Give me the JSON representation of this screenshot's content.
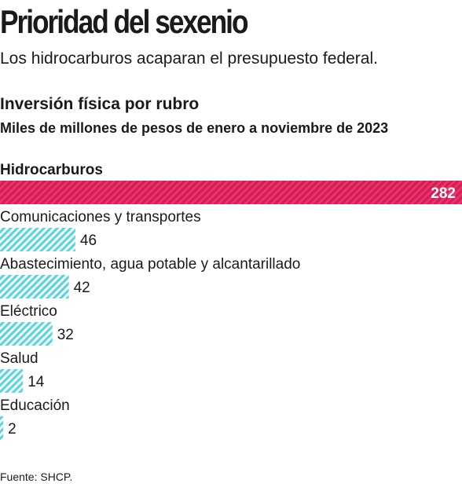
{
  "headline": "Prioridad del sexenio",
  "dek": "Los hidrocarburos acaparan el presupuesto federal.",
  "source": "Fuente: SHCP.",
  "colors": {
    "highlight": "#e0245e",
    "accent": "#5ad5df",
    "text": "#1a1a1a"
  },
  "chart_data": {
    "type": "bar",
    "orientation": "horizontal",
    "title": "Inversión física por rubro",
    "subtitle": "Miles de millones de pesos de enero a noviembre de 2023",
    "categories": [
      "Hidrocarburos",
      "Comunicaciones y transportes",
      "Abastecimiento, agua potable y alcantarillado",
      "Eléctrico",
      "Salud",
      "Educación"
    ],
    "values": [
      282,
      46,
      42,
      32,
      14,
      2
    ],
    "value_labels": [
      "282",
      "46",
      "42",
      "32",
      "14",
      "2"
    ],
    "highlight_index": 0,
    "xlim": [
      0,
      282
    ],
    "grid": false,
    "legend": "none"
  }
}
